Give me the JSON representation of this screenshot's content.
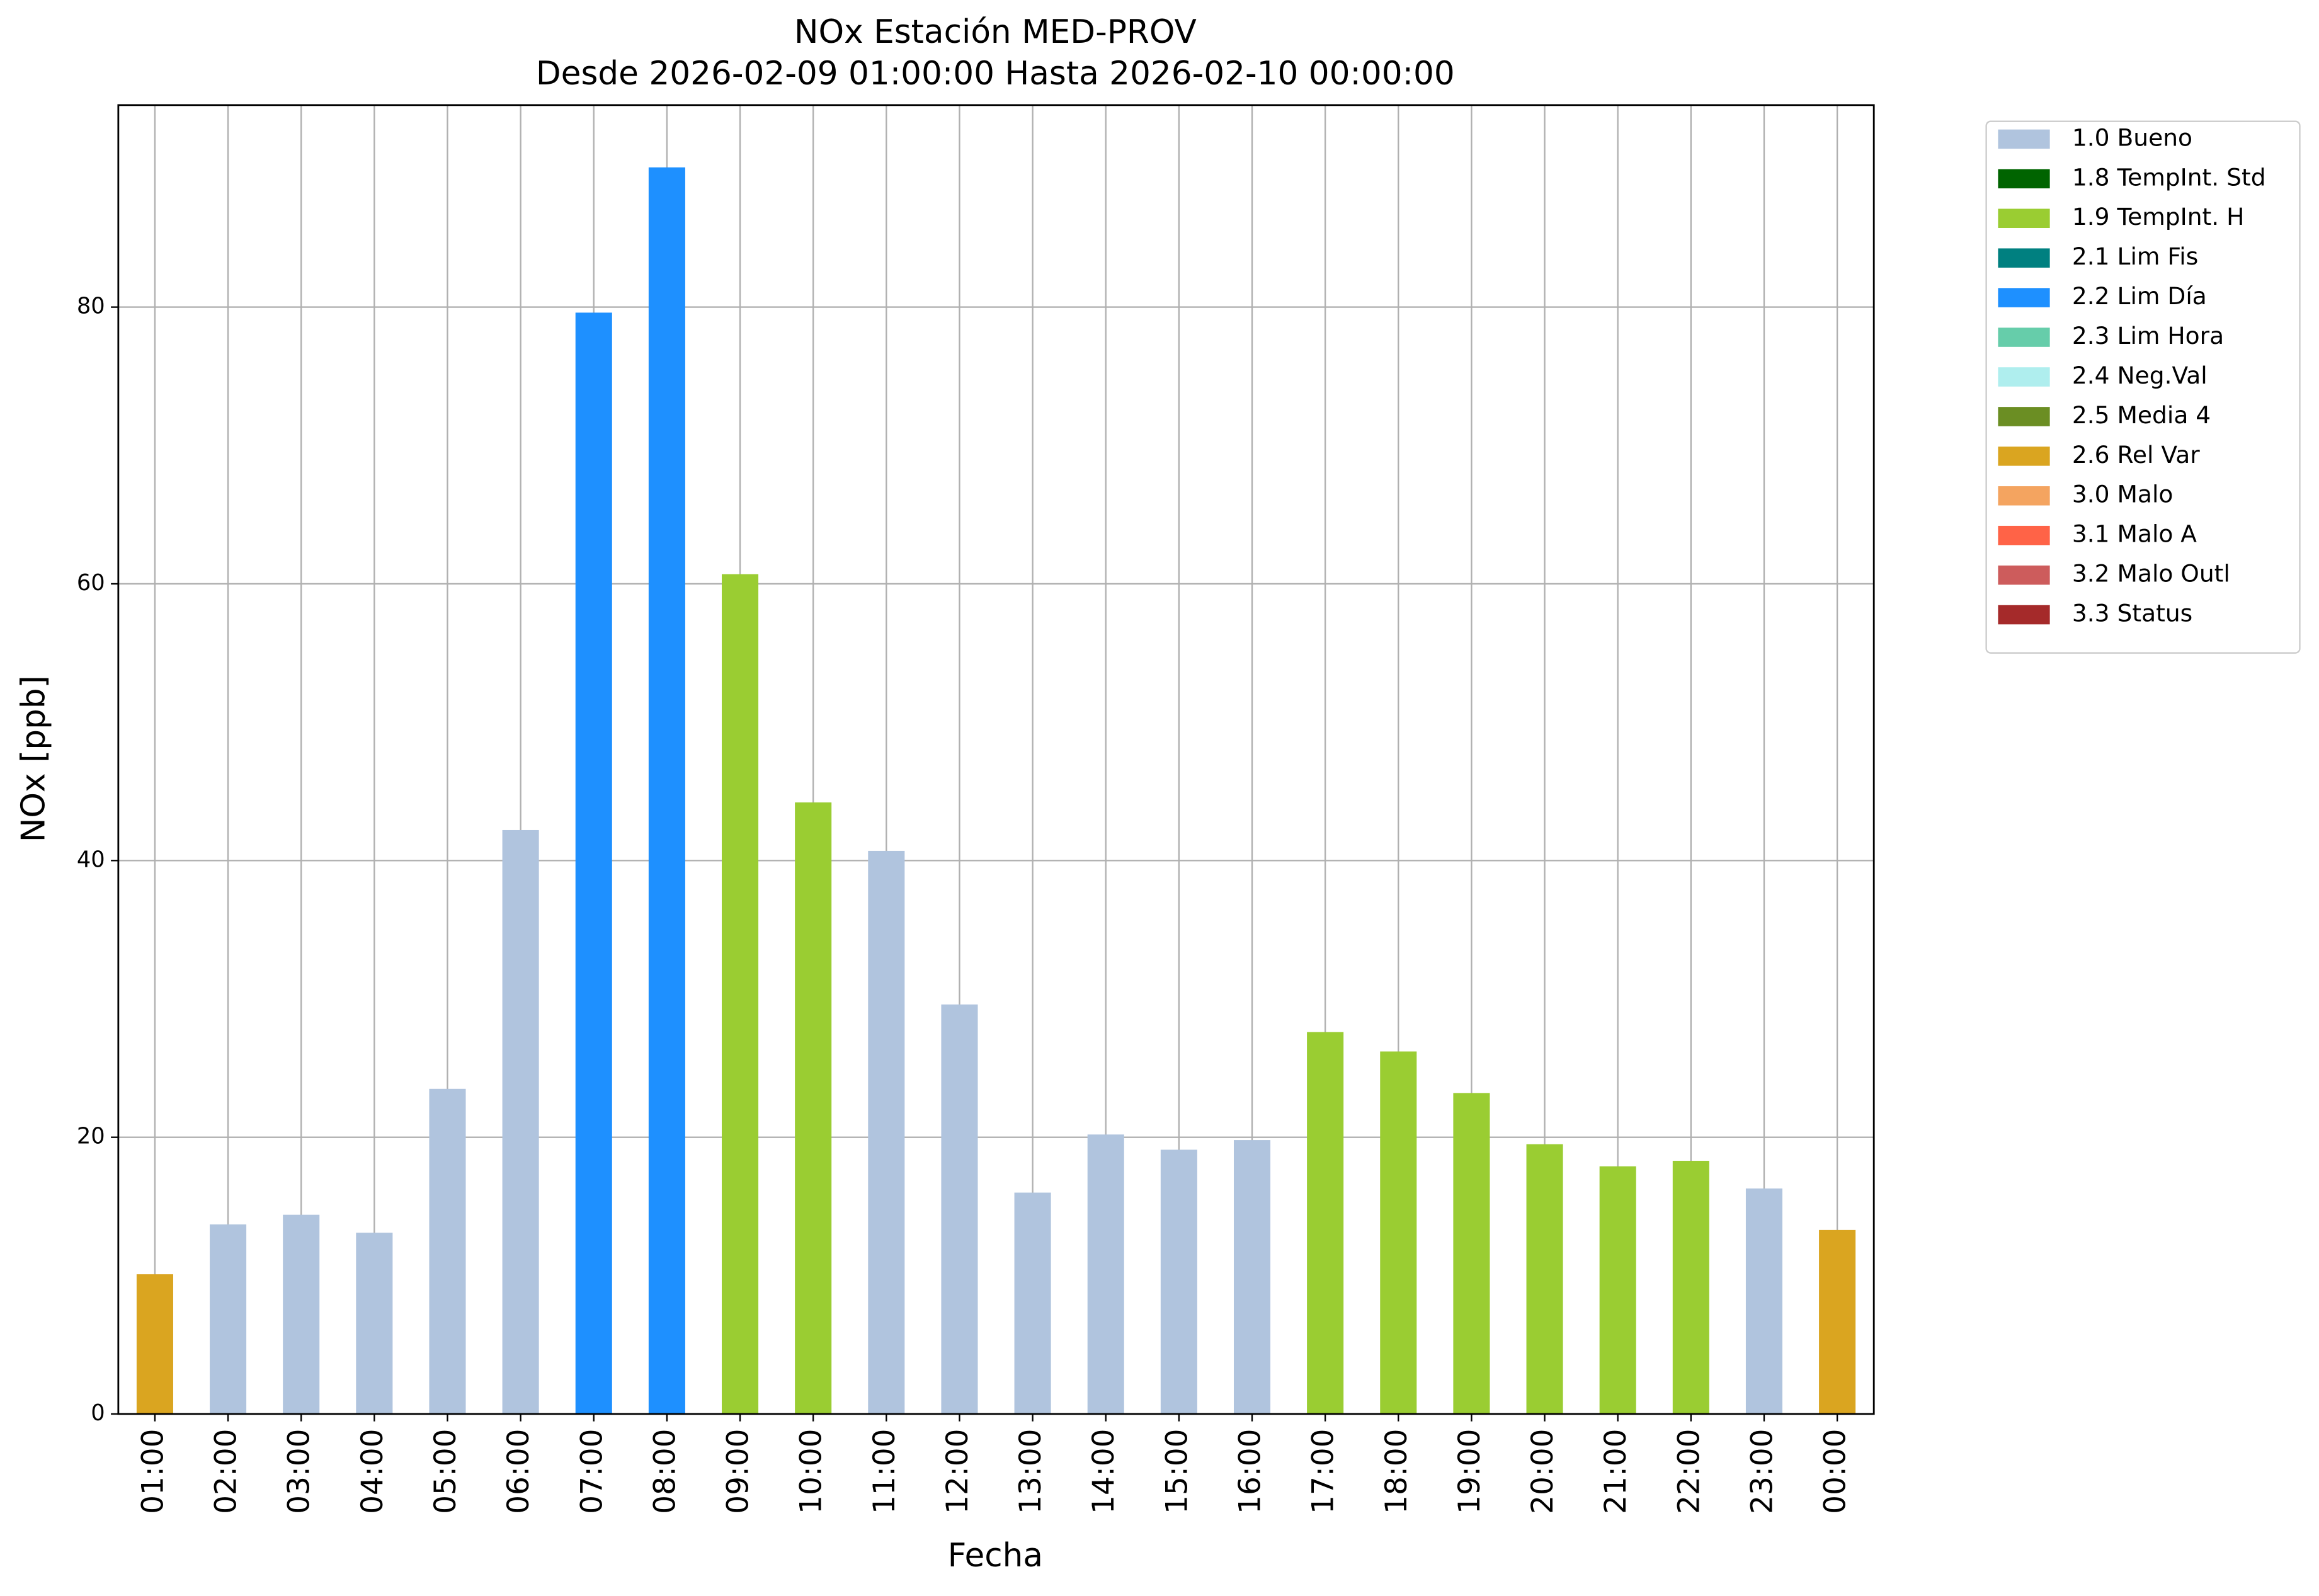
{
  "chart_data": {
    "type": "bar",
    "stacked": true,
    "title": "NOx Estación MED-PROV",
    "subtitle": "Desde 2026-02-09 01:00:00 Hasta 2026-02-10 00:00:00",
    "x_label": "Fecha",
    "y_label": "NOx [ppb]",
    "categories": [
      "01:00",
      "02:00",
      "03:00",
      "04:00",
      "05:00",
      "06:00",
      "07:00",
      "08:00",
      "09:00",
      "10:00",
      "11:00",
      "12:00",
      "13:00",
      "14:00",
      "15:00",
      "16:00",
      "17:00",
      "18:00",
      "19:00",
      "20:00",
      "21:00",
      "22:00",
      "23:00",
      "00:00"
    ],
    "series": [
      {
        "name": "1.0 Bueno",
        "color": "#b0c4de",
        "values": [
          null,
          13.7,
          14.4,
          13.1,
          23.5,
          42.2,
          null,
          null,
          null,
          null,
          40.7,
          29.6,
          16,
          20.2,
          19.1,
          19.8,
          null,
          null,
          null,
          null,
          null,
          null,
          16.3,
          null
        ]
      },
      {
        "name": "1.8 TempInt. Std",
        "color": "#006400",
        "values": [
          null,
          null,
          null,
          null,
          null,
          null,
          null,
          null,
          null,
          null,
          null,
          null,
          null,
          null,
          null,
          null,
          null,
          null,
          null,
          null,
          null,
          null,
          null,
          null
        ]
      },
      {
        "name": "1.9 TempInt. H",
        "color": "#9acd32",
        "values": [
          null,
          null,
          null,
          null,
          null,
          null,
          null,
          null,
          60.7,
          44.2,
          null,
          null,
          null,
          null,
          null,
          null,
          27.6,
          26.2,
          23.2,
          19.5,
          17.9,
          18.3,
          null,
          null
        ]
      },
      {
        "name": "2.1 Lim Fis",
        "color": "#008080",
        "values": [
          null,
          null,
          null,
          null,
          null,
          null,
          null,
          null,
          null,
          null,
          null,
          null,
          null,
          null,
          null,
          null,
          null,
          null,
          null,
          null,
          null,
          null,
          null,
          null
        ]
      },
      {
        "name": "2.2 Lim Día",
        "color": "#1e90ff",
        "values": [
          null,
          null,
          null,
          null,
          null,
          null,
          79.6,
          90.1,
          null,
          null,
          null,
          null,
          null,
          null,
          null,
          null,
          null,
          null,
          null,
          null,
          null,
          null,
          null,
          null
        ]
      },
      {
        "name": "2.3 Lim Hora",
        "color": "#66cdaa",
        "values": [
          null,
          null,
          null,
          null,
          null,
          null,
          null,
          null,
          null,
          null,
          null,
          null,
          null,
          null,
          null,
          null,
          null,
          null,
          null,
          null,
          null,
          null,
          null,
          null
        ]
      },
      {
        "name": "2.4 Neg.Val",
        "color": "#afeeee",
        "values": [
          null,
          null,
          null,
          null,
          null,
          null,
          null,
          null,
          null,
          null,
          null,
          null,
          null,
          null,
          null,
          null,
          null,
          null,
          null,
          null,
          null,
          null,
          null,
          null
        ]
      },
      {
        "name": "2.5 Media 4",
        "color": "#6b8e23",
        "values": [
          null,
          null,
          null,
          null,
          null,
          null,
          null,
          null,
          null,
          null,
          null,
          null,
          null,
          null,
          null,
          null,
          null,
          null,
          null,
          null,
          null,
          null,
          null,
          null
        ]
      },
      {
        "name": "2.6 Rel Var",
        "color": "#daa520",
        "values": [
          10.1,
          null,
          null,
          null,
          null,
          null,
          null,
          null,
          null,
          null,
          null,
          null,
          null,
          null,
          null,
          null,
          null,
          null,
          null,
          null,
          null,
          null,
          null,
          13.3
        ]
      },
      {
        "name": "3.0 Malo",
        "color": "#f4a460",
        "values": [
          null,
          null,
          null,
          null,
          null,
          null,
          null,
          null,
          null,
          null,
          null,
          null,
          null,
          null,
          null,
          null,
          null,
          null,
          null,
          null,
          null,
          null,
          null,
          null
        ]
      },
      {
        "name": "3.1 Malo A",
        "color": "#ff6347",
        "values": [
          null,
          null,
          null,
          null,
          null,
          null,
          null,
          null,
          null,
          null,
          null,
          null,
          null,
          null,
          null,
          null,
          null,
          null,
          null,
          null,
          null,
          null,
          null,
          null
        ]
      },
      {
        "name": "3.2 Malo Outl",
        "color": "#cd5c5c",
        "values": [
          null,
          null,
          null,
          null,
          null,
          null,
          null,
          null,
          null,
          null,
          null,
          null,
          null,
          null,
          null,
          null,
          null,
          null,
          null,
          null,
          null,
          null,
          null,
          null
        ]
      },
      {
        "name": "3.3 Status",
        "color": "#a52a2a",
        "values": [
          null,
          null,
          null,
          null,
          null,
          null,
          null,
          null,
          null,
          null,
          null,
          null,
          null,
          null,
          null,
          null,
          null,
          null,
          null,
          null,
          null,
          null,
          null,
          null
        ]
      }
    ],
    "ylim": [
      0,
      94.6
    ],
    "yticks": [
      0,
      20,
      40,
      60,
      80
    ],
    "grid": true,
    "legend": "outside-right"
  }
}
